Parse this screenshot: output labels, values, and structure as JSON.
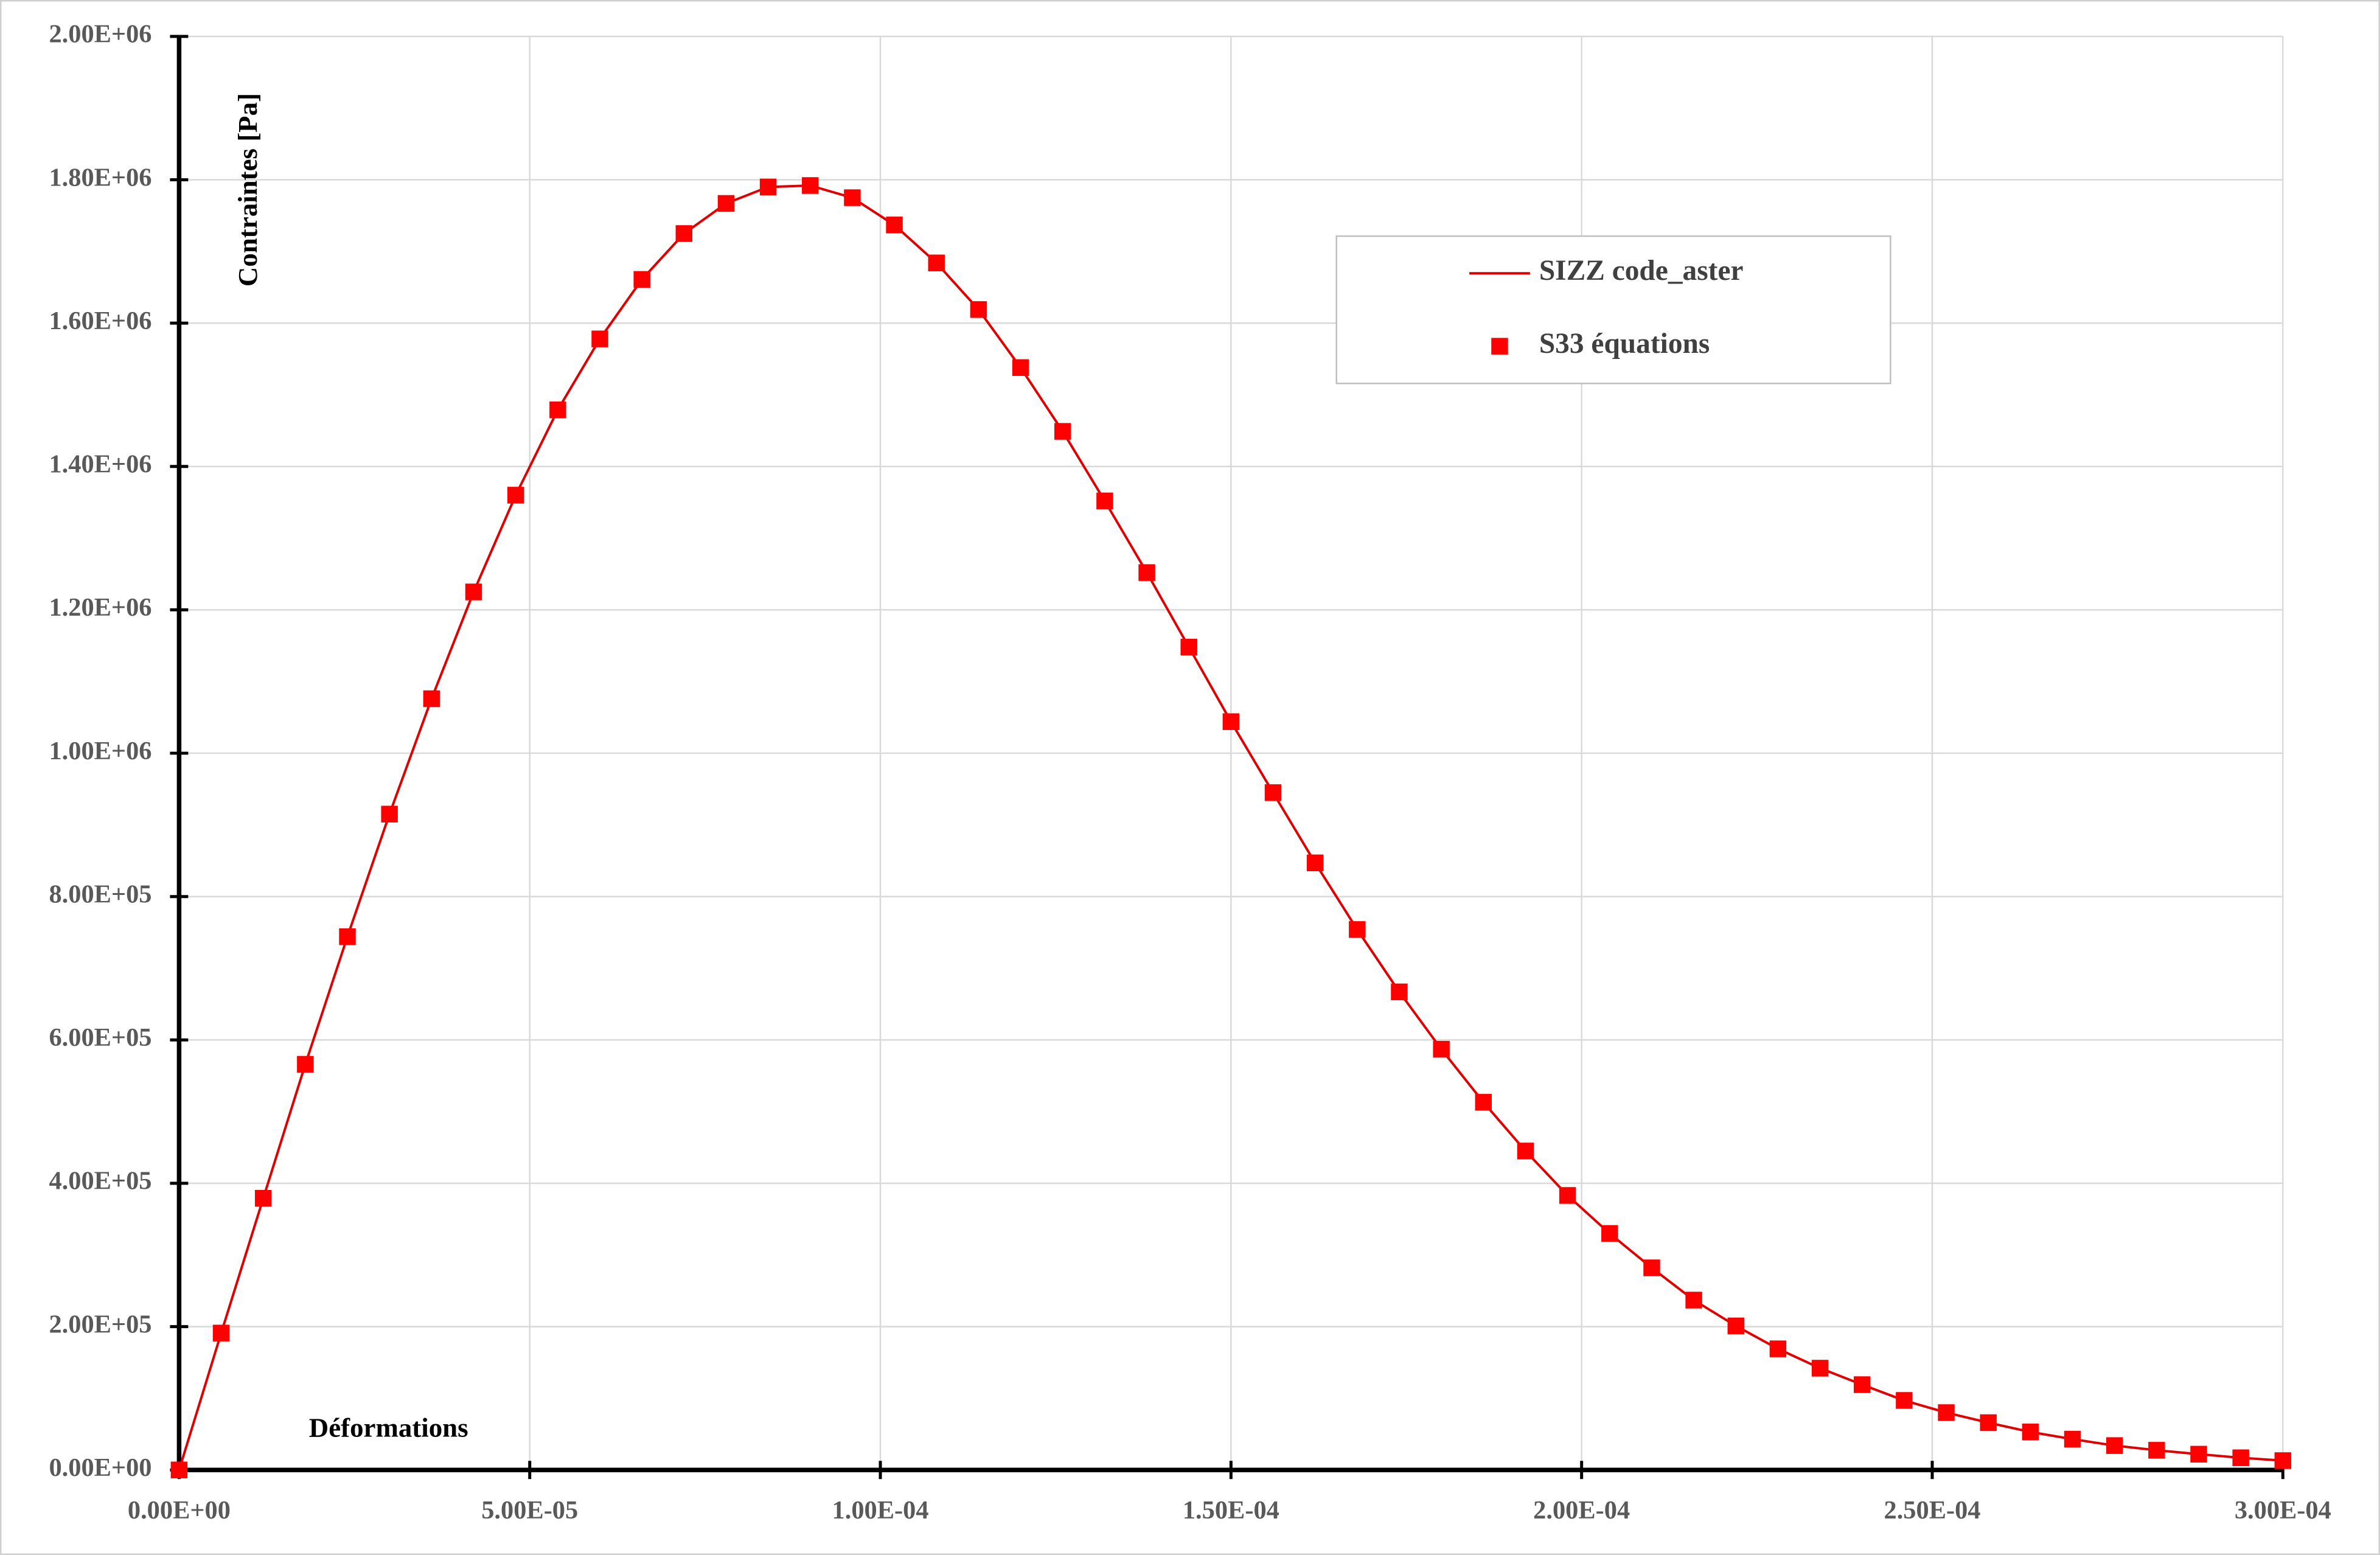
{
  "chart_data": {
    "type": "line",
    "x_label": "Déformations",
    "y_label": "Contraintes [Pa]",
    "x": [
      0,
      6e-06,
      1.2e-05,
      1.8e-05,
      2.4e-05,
      3e-05,
      3.6e-05,
      4.2e-05,
      4.8e-05,
      5.4e-05,
      6e-05,
      6.6e-05,
      7.2e-05,
      7.8e-05,
      8.4e-05,
      9e-05,
      9.6e-05,
      0.000102,
      0.000108,
      0.000114,
      0.00012,
      0.000126,
      0.000132,
      0.000138,
      0.000144,
      0.00015,
      0.000156,
      0.000162,
      0.000168,
      0.000174,
      0.00018,
      0.000186,
      0.000192,
      0.000198,
      0.000204,
      0.00021,
      0.000216,
      0.000222,
      0.000228,
      0.000234,
      0.00024,
      0.000246,
      0.000252,
      0.000258,
      0.000264,
      0.00027,
      0.000276,
      0.000282,
      0.000288,
      0.000294,
      0.0003
    ],
    "series": [
      {
        "name": "SIZZ code_aster",
        "color": "#e00000",
        "style": "line",
        "values": [
          0,
          191000,
          379000,
          566000,
          744000,
          915000,
          1076000,
          1225000,
          1360000,
          1479000,
          1578000,
          1661000,
          1725000,
          1767000,
          1790000,
          1792000,
          1775000,
          1737000,
          1684000,
          1619000,
          1538000,
          1449000,
          1352000,
          1252000,
          1148000,
          1044000,
          945000,
          847000,
          754000,
          667000,
          587000,
          513000,
          445000,
          383000,
          330000,
          282000,
          237000,
          201000,
          169000,
          142000,
          119000,
          97000,
          80000,
          66000,
          53000,
          43000,
          34000,
          27500,
          22000,
          17000,
          13000
        ]
      },
      {
        "name": "S33 équations",
        "color": "#ff0000",
        "style": "markers",
        "values": [
          0,
          191000,
          379000,
          566000,
          744000,
          915000,
          1076000,
          1225000,
          1360000,
          1479000,
          1578000,
          1661000,
          1725000,
          1767000,
          1790000,
          1792000,
          1775000,
          1737000,
          1684000,
          1619000,
          1538000,
          1449000,
          1352000,
          1252000,
          1148000,
          1044000,
          945000,
          847000,
          754000,
          667000,
          587000,
          513000,
          445000,
          383000,
          330000,
          282000,
          237000,
          201000,
          169000,
          142000,
          119000,
          97000,
          80000,
          66000,
          53000,
          43000,
          34000,
          27500,
          22000,
          17000,
          13000
        ]
      }
    ],
    "xlim": [
      0,
      0.0003
    ],
    "ylim": [
      0,
      2000000
    ],
    "xticks": [
      {
        "value": 0,
        "label": "0.00E+00"
      },
      {
        "value": 5e-05,
        "label": "5.00E-05"
      },
      {
        "value": 0.0001,
        "label": "1.00E-04"
      },
      {
        "value": 0.00015,
        "label": "1.50E-04"
      },
      {
        "value": 0.0002,
        "label": "2.00E-04"
      },
      {
        "value": 0.00025,
        "label": "2.50E-04"
      },
      {
        "value": 0.0003,
        "label": "3.00E-04"
      }
    ],
    "yticks": [
      {
        "value": 0,
        "label": "0.00E+00"
      },
      {
        "value": 200000,
        "label": "2.00E+05"
      },
      {
        "value": 400000,
        "label": "4.00E+05"
      },
      {
        "value": 600000,
        "label": "6.00E+05"
      },
      {
        "value": 800000,
        "label": "8.00E+05"
      },
      {
        "value": 1000000,
        "label": "1.00E+06"
      },
      {
        "value": 1200000,
        "label": "1.20E+06"
      },
      {
        "value": 1400000,
        "label": "1.40E+06"
      },
      {
        "value": 1600000,
        "label": "1.60E+06"
      },
      {
        "value": 1800000,
        "label": "1.80E+06"
      },
      {
        "value": 2000000,
        "label": "2.00E+06"
      }
    ],
    "grid": true,
    "legend": "upper right"
  }
}
